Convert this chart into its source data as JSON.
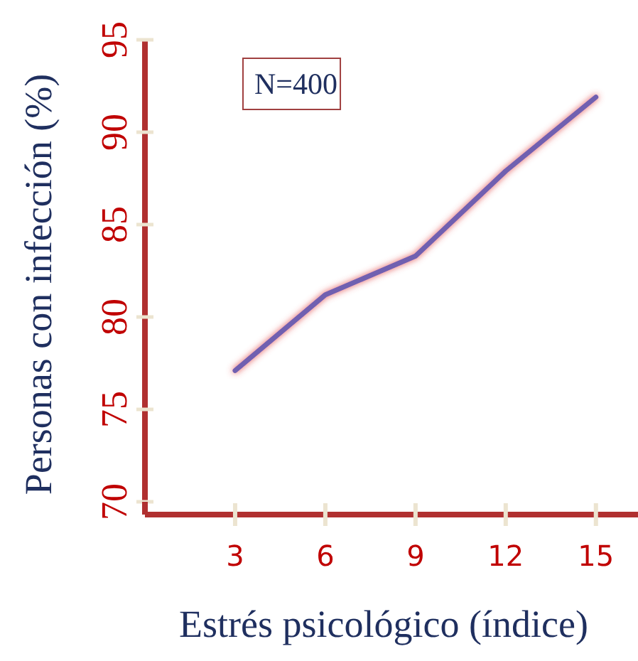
{
  "chart_data": {
    "type": "line",
    "xlabel": "Estrés psicológico (índice)",
    "ylabel": "Personas con infección (%)",
    "annotations": [
      "N=400"
    ],
    "x": [
      3,
      6,
      9,
      12,
      15
    ],
    "series": [
      {
        "color": "#7060b0",
        "values": [
          77.1,
          81.2,
          83.3,
          87.9,
          91.9
        ]
      }
    ],
    "xlim": [
      0,
      16.4
    ],
    "xticks": [
      3,
      6,
      9,
      12,
      15
    ],
    "ylim": [
      70,
      95
    ],
    "yticks": [
      70,
      75,
      80,
      85,
      90,
      95
    ],
    "grid": false,
    "marker": "none",
    "line_style": "solid"
  }
}
